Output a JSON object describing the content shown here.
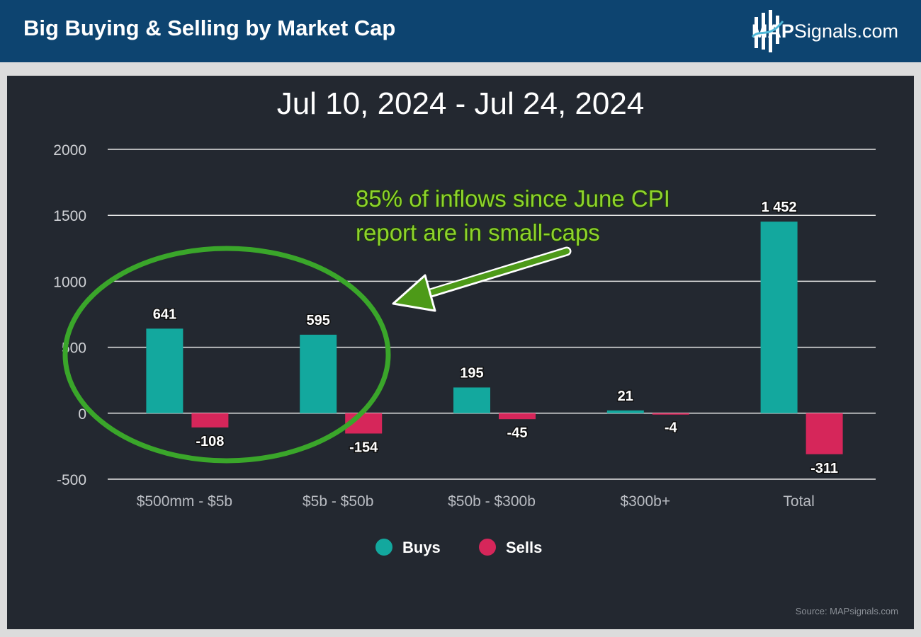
{
  "header": {
    "title": "Big Buying & Selling by Market Cap",
    "brand_strong": "MAP",
    "brand_rest": "Signals.com"
  },
  "colors": {
    "header_bg": "#0d4470",
    "panel_bg": "#232830",
    "buys": "#13a89e",
    "sells": "#d6265a",
    "annotation": "#3aa62a"
  },
  "source": "Source: MAPsignals.com",
  "annotation": {
    "line1": "85% of inflows since June CPI",
    "line2": "report are in small-caps"
  },
  "chart_data": {
    "type": "bar",
    "title": "Jul 10, 2024 - Jul 24, 2024",
    "categories": [
      "$500mm - $5b",
      "$5b - $50b",
      "$50b - $300b",
      "$300b+",
      "Total"
    ],
    "series": [
      {
        "name": "Buys",
        "values": [
          641,
          595,
          195,
          21,
          1452
        ],
        "labels": [
          "641",
          "595",
          "195",
          "21",
          "1 452"
        ]
      },
      {
        "name": "Sells",
        "values": [
          -108,
          -154,
          -45,
          -4,
          -311
        ],
        "labels": [
          "-108",
          "-154",
          "-45",
          "-4",
          "-311"
        ]
      }
    ],
    "yticks": [
      "2000",
      "1500",
      "1000",
      "500",
      "0",
      "-500"
    ],
    "ylim": [
      -500,
      2000
    ],
    "xlabel": "",
    "ylabel": "",
    "grid": true,
    "legend_position": "bottom"
  }
}
